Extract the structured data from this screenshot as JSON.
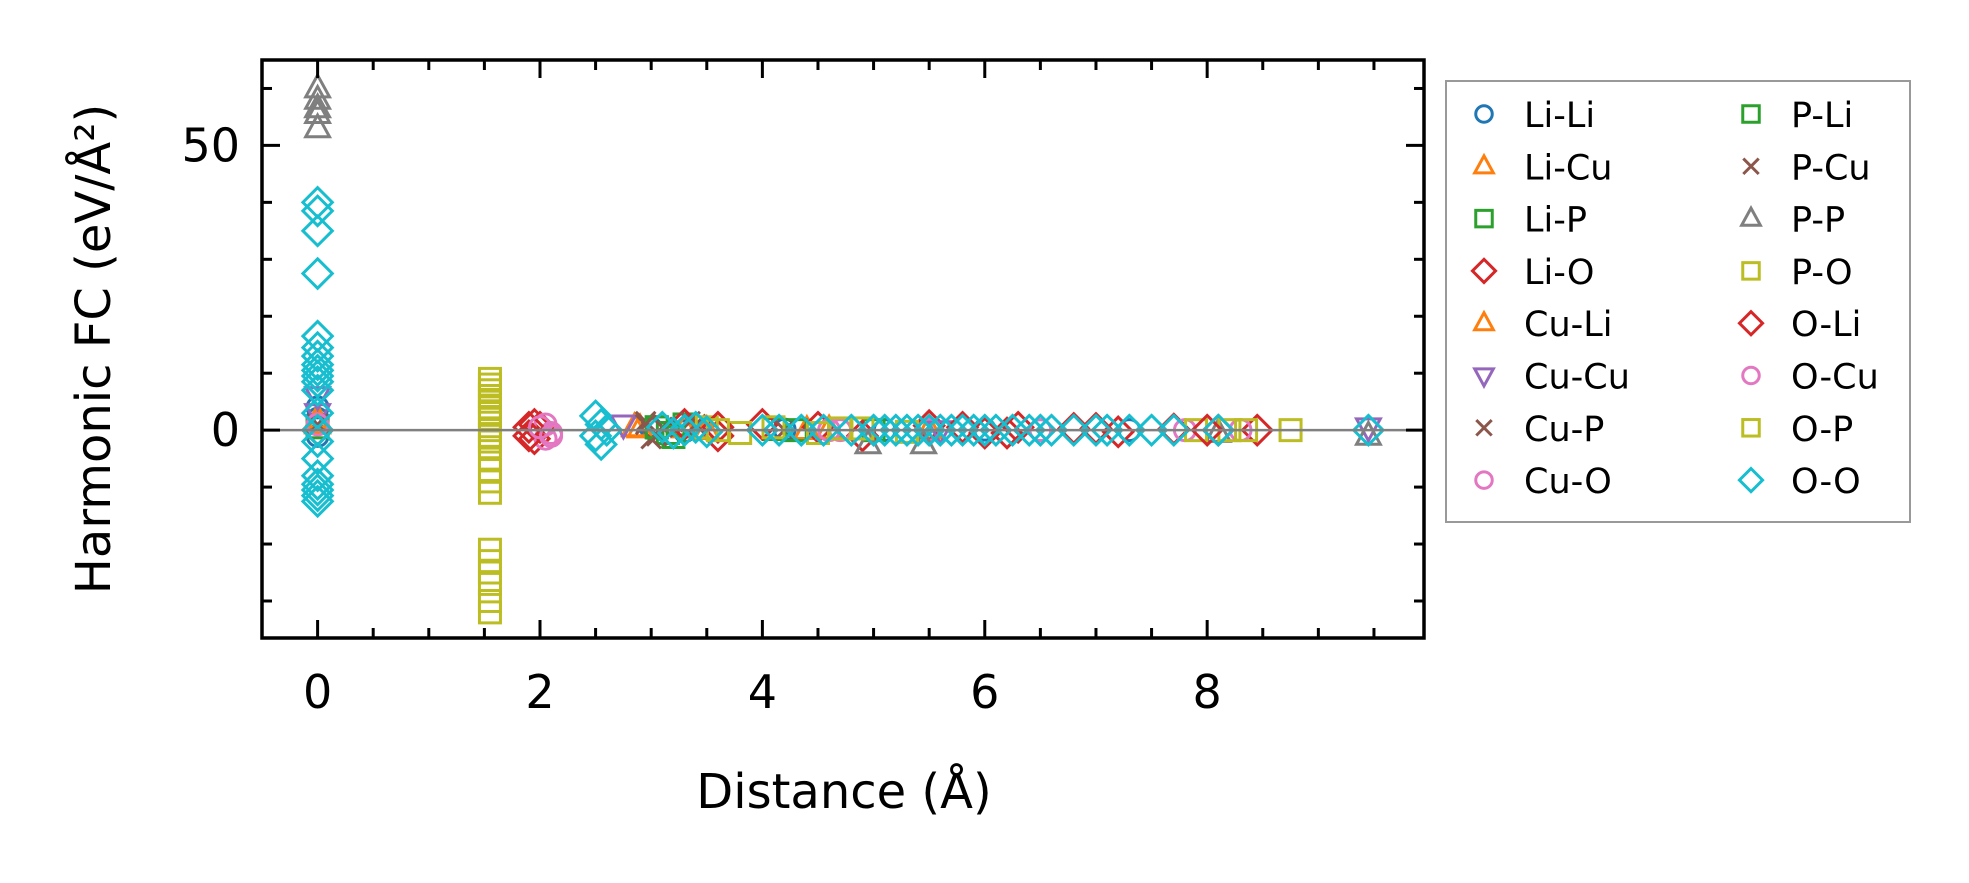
{
  "chart_data": {
    "type": "scatter",
    "title": "",
    "xlabel": "Distance (Å)",
    "ylabel": "Harmonic FC (eV/Å²)",
    "xlim": [
      -0.5,
      9.95
    ],
    "ylim": [
      -36.5,
      65
    ],
    "xticks": [
      0,
      2,
      4,
      6,
      8
    ],
    "xtick_labels": [
      "0",
      "2",
      "4",
      "6",
      "8"
    ],
    "yticks": [
      0,
      50
    ],
    "ytick_labels": [
      "0",
      "50"
    ],
    "x_minor_step": 0.5,
    "y_minor_step": 10,
    "grid": false,
    "zero_line": true,
    "legend_position": "outside-right",
    "series": [
      {
        "name": "Li-Li",
        "marker": "circle",
        "color": "#1f77b4",
        "points": [
          [
            0,
            4
          ],
          [
            0,
            2
          ],
          [
            0,
            -1
          ],
          [
            3.0,
            0.3
          ],
          [
            3.3,
            -0.2
          ],
          [
            4.2,
            0.1
          ],
          [
            5.1,
            0
          ],
          [
            6.0,
            0.1
          ],
          [
            7.3,
            0
          ]
        ]
      },
      {
        "name": "Li-Cu",
        "marker": "triangle-up",
        "color": "#ff7f0e",
        "points": [
          [
            0,
            1
          ],
          [
            2.85,
            0.5
          ],
          [
            3.3,
            0.3
          ],
          [
            4.4,
            0
          ],
          [
            5.5,
            0.1
          ]
        ]
      },
      {
        "name": "Li-P",
        "marker": "square",
        "color": "#2ca02c",
        "points": [
          [
            0,
            0.5
          ],
          [
            3.05,
            0.5
          ],
          [
            3.15,
            -0.5
          ],
          [
            3.3,
            1
          ],
          [
            4.1,
            0.2
          ],
          [
            5.0,
            0
          ]
        ]
      },
      {
        "name": "Li-O",
        "marker": "diamond",
        "color": "#d62728",
        "points": [
          [
            0,
            0
          ],
          [
            1.95,
            1
          ],
          [
            1.95,
            -1.5
          ],
          [
            2.0,
            0.5
          ],
          [
            3.3,
            1
          ],
          [
            3.6,
            -1
          ],
          [
            4.0,
            1
          ],
          [
            4.5,
            0.5
          ],
          [
            4.9,
            -1
          ],
          [
            5.5,
            0.8
          ],
          [
            6.0,
            -0.5
          ],
          [
            6.3,
            0.5
          ],
          [
            6.8,
            0.3
          ],
          [
            7.2,
            -0.3
          ],
          [
            7.7,
            0.2
          ],
          [
            8.1,
            0
          ],
          [
            8.45,
            0
          ]
        ]
      },
      {
        "name": "Cu-Li",
        "marker": "triangle-up",
        "color": "#ff7f0e",
        "points": [
          [
            0,
            2
          ],
          [
            2.9,
            0.3
          ],
          [
            3.5,
            0
          ],
          [
            4.6,
            0.1
          ]
        ]
      },
      {
        "name": "Cu-Cu",
        "marker": "triangle-down",
        "color": "#9467bd",
        "points": [
          [
            0,
            6
          ],
          [
            0,
            3
          ],
          [
            2.75,
            1
          ],
          [
            5.6,
            0
          ],
          [
            9.45,
            0.5
          ]
        ]
      },
      {
        "name": "Cu-P",
        "marker": "x",
        "color": "#8c564b",
        "points": [
          [
            0,
            1
          ],
          [
            2.95,
            1.5
          ],
          [
            3.0,
            -1.5
          ],
          [
            3.1,
            0.5
          ],
          [
            3.35,
            1.5
          ],
          [
            4.2,
            0
          ]
        ]
      },
      {
        "name": "Cu-O",
        "marker": "circle",
        "color": "#e377c2",
        "points": [
          [
            0,
            1
          ],
          [
            2.05,
            1
          ],
          [
            2.1,
            -0.5
          ],
          [
            2.05,
            -1.5
          ],
          [
            4.6,
            0
          ],
          [
            5.5,
            0.1
          ],
          [
            6.5,
            0
          ],
          [
            7.8,
            0
          ],
          [
            8.3,
            0
          ]
        ]
      },
      {
        "name": "P-Li",
        "marker": "square",
        "color": "#2ca02c",
        "points": [
          [
            3.05,
            0.5
          ],
          [
            3.2,
            -1.2
          ],
          [
            4.3,
            0
          ]
        ]
      },
      {
        "name": "P-Cu",
        "marker": "x",
        "color": "#8c564b",
        "points": [
          [
            2.95,
            1
          ],
          [
            3.05,
            -1
          ],
          [
            3.4,
            1
          ]
        ]
      },
      {
        "name": "P-P",
        "marker": "triangle-up",
        "color": "#7f7f7f",
        "points": [
          [
            0,
            60
          ],
          [
            0,
            58
          ],
          [
            0,
            56.5
          ],
          [
            0,
            55.5
          ],
          [
            0,
            53
          ],
          [
            4.95,
            -2.5
          ],
          [
            5.45,
            -2.5
          ],
          [
            9.45,
            -1
          ],
          [
            8.1,
            -0.5
          ]
        ]
      },
      {
        "name": "P-O",
        "marker": "square",
        "color": "#bcbd22",
        "points": [
          [
            1.55,
            9
          ],
          [
            1.55,
            8
          ],
          [
            1.55,
            7
          ],
          [
            1.55,
            6
          ],
          [
            1.55,
            5
          ],
          [
            1.55,
            3
          ],
          [
            1.55,
            2
          ],
          [
            1.55,
            0
          ],
          [
            1.55,
            -1
          ],
          [
            1.55,
            -3
          ],
          [
            1.55,
            -5
          ],
          [
            1.55,
            -7
          ],
          [
            1.55,
            -9
          ],
          [
            1.55,
            -11
          ],
          [
            1.55,
            -21
          ],
          [
            1.55,
            -23
          ],
          [
            1.55,
            -25
          ],
          [
            1.55,
            -27
          ],
          [
            1.55,
            -30
          ],
          [
            1.55,
            -32
          ],
          [
            3.5,
            0.5
          ],
          [
            3.8,
            -0.5
          ],
          [
            4.1,
            0.5
          ],
          [
            4.5,
            -0.5
          ],
          [
            4.9,
            0.3
          ],
          [
            5.3,
            -0.3
          ],
          [
            7.9,
            0
          ],
          [
            8.2,
            0
          ],
          [
            8.35,
            0
          ],
          [
            8.75,
            0
          ]
        ]
      },
      {
        "name": "O-Li",
        "marker": "diamond",
        "color": "#d62728",
        "points": [
          [
            1.9,
            0.5
          ],
          [
            1.9,
            -1
          ],
          [
            3.6,
            0.5
          ],
          [
            5.8,
            0.5
          ],
          [
            6.2,
            -0.5
          ],
          [
            7.0,
            0.3
          ],
          [
            8.0,
            0
          ]
        ]
      },
      {
        "name": "O-Cu",
        "marker": "circle",
        "color": "#e377c2",
        "points": [
          [
            2.0,
            0.5
          ],
          [
            2.1,
            -1
          ],
          [
            4.7,
            0
          ],
          [
            6.5,
            0
          ]
        ]
      },
      {
        "name": "O-P",
        "marker": "square",
        "color": "#bcbd22",
        "points": [
          [
            1.55,
            4
          ],
          [
            1.55,
            -2
          ],
          [
            3.6,
            0
          ],
          [
            4.7,
            0.3
          ]
        ]
      },
      {
        "name": "O-O",
        "marker": "diamond",
        "color": "#17becf",
        "points": [
          [
            0,
            40
          ],
          [
            0,
            38.5
          ],
          [
            0,
            35
          ],
          [
            0,
            27.5
          ],
          [
            0,
            16.5
          ],
          [
            0,
            14.5
          ],
          [
            0,
            13
          ],
          [
            0,
            11.5
          ],
          [
            0,
            10.5
          ],
          [
            0,
            9.5
          ],
          [
            0,
            8.5
          ],
          [
            0,
            7
          ],
          [
            0,
            3
          ],
          [
            0,
            0
          ],
          [
            0,
            -2
          ],
          [
            0,
            -5
          ],
          [
            0,
            -8
          ],
          [
            0,
            -9.5
          ],
          [
            0,
            -10.5
          ],
          [
            0,
            -11.5
          ],
          [
            0,
            -12.5
          ],
          [
            2.5,
            2.5
          ],
          [
            2.55,
            1
          ],
          [
            2.5,
            -1
          ],
          [
            2.55,
            -2.5
          ],
          [
            2.6,
            0
          ],
          [
            3.1,
            0.5
          ],
          [
            3.2,
            -0.5
          ],
          [
            3.3,
            0
          ],
          [
            3.4,
            0.5
          ],
          [
            3.5,
            -0.3
          ],
          [
            4.0,
            0
          ],
          [
            4.15,
            0
          ],
          [
            4.35,
            0
          ],
          [
            4.55,
            0
          ],
          [
            4.8,
            0
          ],
          [
            5.0,
            0
          ],
          [
            5.1,
            0
          ],
          [
            5.2,
            0
          ],
          [
            5.3,
            0
          ],
          [
            5.4,
            0
          ],
          [
            5.5,
            0
          ],
          [
            5.6,
            0
          ],
          [
            5.7,
            0
          ],
          [
            5.8,
            0
          ],
          [
            5.9,
            0
          ],
          [
            6.0,
            0
          ],
          [
            6.1,
            0
          ],
          [
            6.25,
            0
          ],
          [
            6.4,
            0
          ],
          [
            6.5,
            0
          ],
          [
            6.6,
            0
          ],
          [
            6.8,
            0
          ],
          [
            7.0,
            0
          ],
          [
            7.1,
            0
          ],
          [
            7.3,
            0
          ],
          [
            7.5,
            0
          ],
          [
            7.7,
            0
          ],
          [
            8.1,
            0
          ],
          [
            9.45,
            0
          ]
        ]
      }
    ]
  }
}
